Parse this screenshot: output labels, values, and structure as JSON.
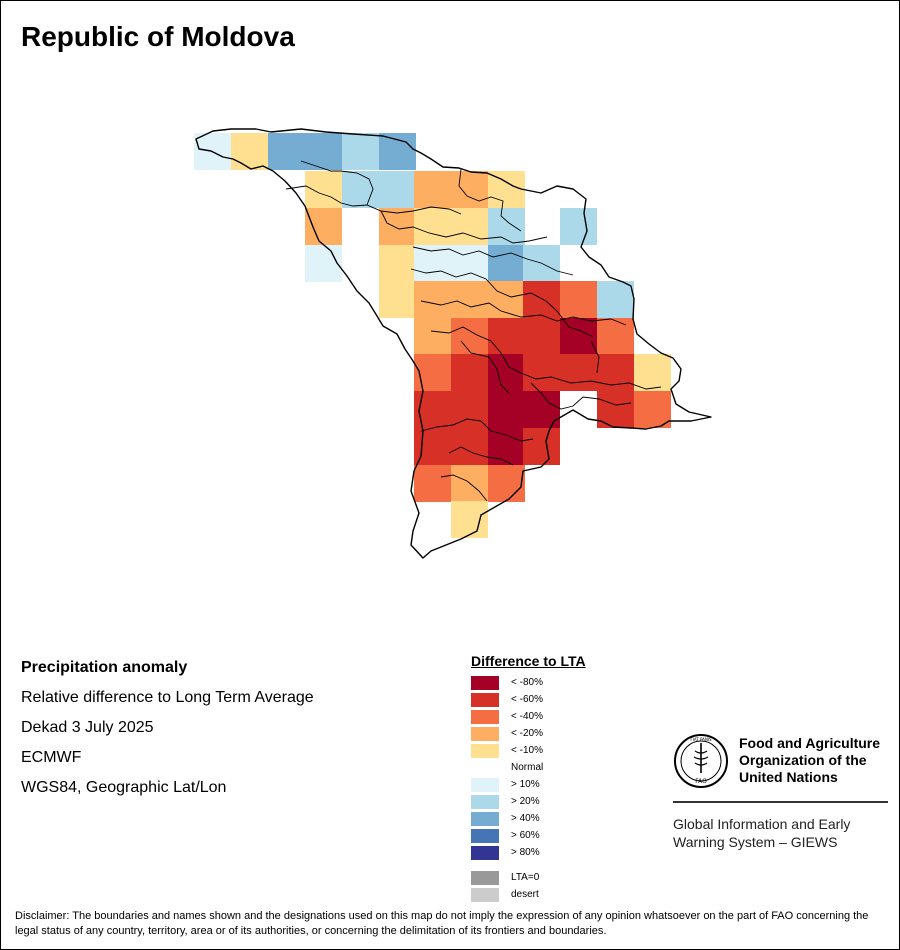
{
  "title": "Republic of Moldova",
  "info": {
    "heading": "Precipitation anomaly",
    "subtitle": "Relative difference to Long Term Average",
    "period": "Dekad 3 July 2025",
    "source": "ECMWF",
    "projection": "WGS84, Geographic Lat/Lon"
  },
  "legend": {
    "title": "Difference to LTA",
    "classes": [
      {
        "key": "lt80",
        "label": "< -80%",
        "color": "#a50026"
      },
      {
        "key": "lt60",
        "label": "< -60%",
        "color": "#d73027"
      },
      {
        "key": "lt40",
        "label": "< -40%",
        "color": "#f46d43"
      },
      {
        "key": "lt20",
        "label": "< -20%",
        "color": "#fdae61"
      },
      {
        "key": "lt10",
        "label": "< -10%",
        "color": "#fee090"
      },
      {
        "key": "normal",
        "label": "Normal",
        "color": "#ffffff"
      },
      {
        "key": "gt10",
        "label": "> 10%",
        "color": "#e0f3f8"
      },
      {
        "key": "gt20",
        "label": "> 20%",
        "color": "#abd9e9"
      },
      {
        "key": "gt40",
        "label": "> 40%",
        "color": "#74add1"
      },
      {
        "key": "gt60",
        "label": "> 60%",
        "color": "#4575b4"
      },
      {
        "key": "gt80",
        "label": "> 80%",
        "color": "#313695"
      }
    ],
    "extra": [
      {
        "key": "lta0",
        "label": "LTA=0",
        "color": "#999999"
      },
      {
        "key": "desert",
        "label": "desert",
        "color": "#cccccc"
      }
    ]
  },
  "map_data": {
    "grid_rows": [
      [
        "gt10",
        "lt10",
        "gt40",
        "gt40",
        "gt20",
        "gt40",
        null,
        null,
        null,
        null,
        null,
        null,
        null
      ],
      [
        null,
        null,
        null,
        "lt10",
        "gt20",
        "gt20",
        "lt20",
        "lt20",
        "lt10",
        null,
        null,
        null,
        null
      ],
      [
        null,
        null,
        null,
        "lt20",
        "normal",
        "lt20",
        "lt10",
        "lt10",
        "gt20",
        "normal",
        "gt20",
        null,
        null
      ],
      [
        null,
        null,
        null,
        "gt10",
        "normal",
        "lt10",
        "gt10",
        "gt10",
        "gt40",
        "gt20",
        null,
        null,
        null
      ],
      [
        null,
        null,
        null,
        null,
        null,
        "lt10",
        "lt20",
        "lt20",
        "lt20",
        "lt60",
        "lt40",
        "gt20",
        null
      ],
      [
        null,
        null,
        null,
        null,
        null,
        null,
        "lt20",
        "lt40",
        "lt60",
        "lt60",
        "lt80",
        "lt40",
        null
      ],
      [
        null,
        null,
        null,
        null,
        null,
        null,
        "lt40",
        "lt60",
        "lt80",
        "lt60",
        "lt60",
        "lt60",
        "lt10"
      ],
      [
        null,
        null,
        null,
        null,
        null,
        null,
        "lt60",
        "lt60",
        "lt80",
        "lt80",
        "normal",
        "lt60",
        "lt40"
      ],
      [
        null,
        null,
        null,
        null,
        null,
        null,
        "lt60",
        "lt60",
        "lt80",
        "lt60",
        null,
        null,
        null
      ],
      [
        null,
        null,
        null,
        null,
        null,
        null,
        "lt40",
        "lt20",
        "lt40",
        null,
        null,
        null,
        null
      ],
      [
        null,
        null,
        null,
        null,
        null,
        null,
        null,
        "lt10",
        null,
        null,
        null,
        null,
        null
      ]
    ],
    "ink_color": "#000000"
  },
  "fao": {
    "name_line1": "Food and Agriculture",
    "name_line2": "Organization of the",
    "name_line3": "United Nations",
    "logo_text": "FAO",
    "logo_motto": "FIAT PANIS",
    "giews_line1": "Global Information and Early",
    "giews_line2": "Warning System – GIEWS"
  },
  "disclaimer": "Disclaimer: The boundaries and names shown and the designations used on this map do not imply the expression of any opinion whatsoever on the part of FAO concerning the legal status of any country, territory, area or of its authorities, or concerning the delimitation of its frontiers and boundaries."
}
